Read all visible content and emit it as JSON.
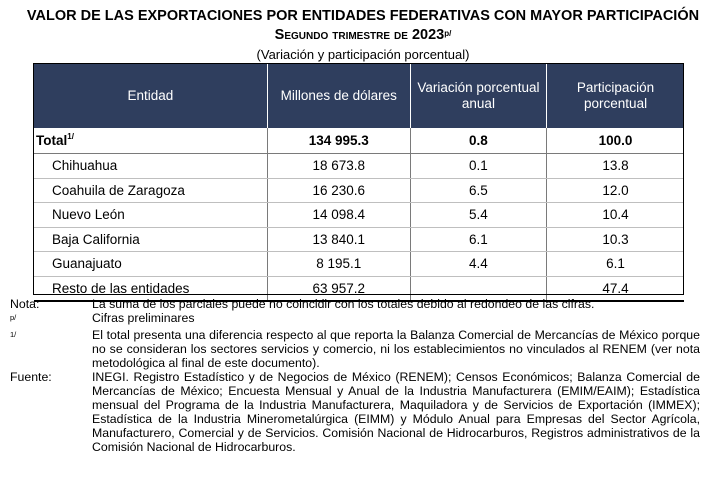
{
  "title_line1": "VALOR DE LAS EXPORTACIONES POR ENTIDADES FEDERATIVAS CON MAYOR PARTICIPACIÓN",
  "title_line2": "Segundo trimestre de 2023",
  "title_line2_sup": "p/",
  "subtitle": "(Variación y participación porcentual)",
  "table": {
    "headers": [
      "Entidad",
      "Millones de dólares",
      "Variación porcentual anual",
      "Participación porcentual"
    ],
    "total": {
      "label": "Total",
      "sup": "1/",
      "millones": "134 995.3",
      "variacion": "0.8",
      "participacion": "100.0"
    },
    "rows": [
      {
        "entidad": "Chihuahua",
        "millones": "18 673.8",
        "variacion": "0.1",
        "participacion": "13.8"
      },
      {
        "entidad": "Coahuila de Zaragoza",
        "millones": "16 230.6",
        "variacion": "6.5",
        "participacion": "12.0"
      },
      {
        "entidad": "Nuevo León",
        "millones": "14 098.4",
        "variacion": "5.4",
        "participacion": "10.4"
      },
      {
        "entidad": "Baja California",
        "millones": "13 840.1",
        "variacion": "6.1",
        "participacion": "10.3"
      },
      {
        "entidad": "Guanajuato",
        "millones": "8 195.1",
        "variacion": "4.4",
        "participacion": "6.1"
      },
      {
        "entidad": "Resto de las entidades",
        "millones": "63 957.2",
        "variacion": "",
        "participacion": "47.4"
      }
    ]
  },
  "notes": {
    "nota_label": "Nota:",
    "nota_text": "La suma de los parciales puede no coincidir con los totales debido al redondeo de las cifras.",
    "p_label": "p/",
    "p_text": "Cifras preliminares",
    "one_label": "1/",
    "one_text": "El total presenta una diferencia respecto al que reporta la Balanza Comercial de Mercancías de México porque no se consideran los sectores servicios y comercio, ni los establecimientos no vinculados al RENEM (ver nota metodológica al final de este documento).",
    "fuente_label": "Fuente:",
    "fuente_text": "INEGI. Registro Estadístico y de Negocios de México (RENEM); Censos Económicos; Balanza Comercial de Mercancías de México; Encuesta Mensual y Anual de la Industria Manufacturera (EMIM/EAIM); Estadística mensual del Programa de la Industria Manufacturera, Maquiladora y de Servicios de Exportación (IMMEX); Estadística de la Industria Minerometalúrgica (EIMM) y Módulo Anual para Empresas del Sector Agrícola, Manufacturero, Comercial y de Servicios. Comisión Nacional de Hidrocarburos, Registros administrativos de la Comisión Nacional de Hidrocarburos."
  }
}
